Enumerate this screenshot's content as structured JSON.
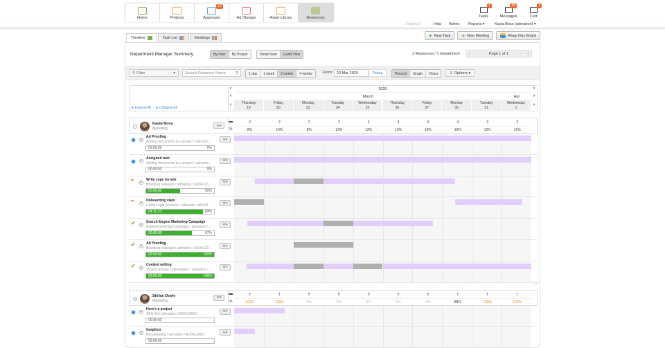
{
  "topnav": {
    "items": [
      {
        "label": "Home",
        "icon": "home-icon",
        "color": "#7ab04a"
      },
      {
        "label": "Projects",
        "icon": "folder-icon",
        "color": "#f0a050"
      },
      {
        "label": "Approvals",
        "icon": "approvals-icon",
        "color": "#6aa0e0",
        "badge": "27"
      },
      {
        "label": "Ad Storage",
        "icon": "storage-icon",
        "color": "#e06a7a"
      },
      {
        "label": "Asset Library",
        "icon": "image-icon",
        "color": "#f0a050"
      },
      {
        "label": "Resources",
        "icon": "resources-icon",
        "color": "#b8c890",
        "active": true
      }
    ],
    "right": [
      {
        "label": "Tasks",
        "icon": "tasks-icon",
        "badge": "1"
      },
      {
        "label": "Messages",
        "icon": "mail-icon",
        "badge": "48"
      },
      {
        "label": "Cart",
        "icon": "cart-icon",
        "badge": "1"
      }
    ]
  },
  "submenu": {
    "env": "Staging-2",
    "help": "Help",
    "admin": "Admin",
    "reports": "Reports ▾",
    "user": "Kayla Boss (admation) ▾"
  },
  "tabs": [
    {
      "label": "Timeline",
      "active": true
    },
    {
      "label": "Task List"
    },
    {
      "label": "Meetings"
    }
  ],
  "actions": {
    "new_task": "New Task",
    "new_meeting": "New Meeting",
    "away_day": "Away Day Board"
  },
  "summary": {
    "title": "Department Manager Summary",
    "view_by": [
      "By User",
      "By Project"
    ],
    "view_by_selected": "By User",
    "view_mode": [
      "Detail View",
      "Gantt View"
    ],
    "view_mode_selected": "Gantt View",
    "resources": "2 Resources / 1 Department",
    "page": "Page 1 of 1"
  },
  "toolbar": {
    "filter": "Filter",
    "search_placeholder": "Search Resource Name",
    "ranges": [
      "1 day",
      "1 week",
      "2 weeks",
      "4 weeks"
    ],
    "range_selected": "2 weeks",
    "from_label": "From:",
    "from_value": "23 Mar 2020",
    "today": "Today",
    "display": [
      "Percent",
      "Graph",
      "Hours"
    ],
    "display_selected": "Percent",
    "options": "Options ▾"
  },
  "calendar": {
    "year": "2020",
    "months": [
      {
        "label": "March",
        "span": 9
      },
      {
        "label": "Apr",
        "span": 1
      }
    ],
    "expand_all": "Expand All",
    "collapse_all": "Collapse All",
    "days": [
      {
        "dow": "Thursday",
        "d": "19"
      },
      {
        "dow": "Friday",
        "d": "20"
      },
      {
        "dow": "Monday",
        "d": "23"
      },
      {
        "dow": "Tuesday",
        "d": "24"
      },
      {
        "dow": "Wednesday",
        "d": "25"
      },
      {
        "dow": "Thursday",
        "d": "26"
      },
      {
        "dow": "Friday",
        "d": "27"
      },
      {
        "dow": "Monday",
        "d": "30"
      },
      {
        "dow": "Tuesday",
        "d": "31"
      },
      {
        "dow": "Wednesday",
        "d": "1"
      }
    ]
  },
  "users": [
    {
      "name": "Kayla Boss",
      "dept": "Marketing",
      "counts": [
        "2",
        "2",
        "2",
        "3",
        "3",
        "3",
        "3",
        "4",
        "3",
        "3"
      ],
      "percents": [
        "8%",
        "14%",
        "8%",
        "13%",
        "13%",
        "13%",
        "19%",
        "16%",
        "12%",
        "12%"
      ],
      "percent_colors": [
        "#333",
        "#333",
        "#333",
        "#333",
        "#333",
        "#333",
        "#333",
        "#333",
        "#333",
        "#333"
      ],
      "tasks": [
        {
          "status": "active",
          "name": "Ad Proofing",
          "sub": "Adding documents to a project / admatio...",
          "time": "00:00:00",
          "pct": "0%",
          "fill": 0,
          "bars": [
            {
              "s": 0,
              "e": 10,
              "c": "p"
            }
          ]
        },
        {
          "status": "active",
          "name": "Assigned task",
          "sub": "Adding documents to a project / admatio...",
          "time": "00:00:00",
          "pct": "0%",
          "fill": 0,
          "bars": [
            {
              "s": 0,
              "e": 10,
              "c": "p"
            }
          ]
        },
        {
          "status": "overdue",
          "name": "Write copy for ads",
          "sub": "Branding redesign / admation / AD04120...",
          "time": "02:00:00",
          "pct": "50%",
          "fill": 50,
          "bars": [
            {
              "s": 0.7,
              "e": 2,
              "c": "p"
            },
            {
              "s": 2,
              "e": 3,
              "c": "g"
            },
            {
              "s": 3,
              "e": 7.43,
              "c": "p"
            }
          ]
        },
        {
          "status": "overdue",
          "name": "Onboarding stats",
          "sub": "Client Login Screens / admation / AD041...",
          "time": "04:11:23",
          "pct": "84%",
          "fill": 84,
          "bars": [
            {
              "s": 0,
              "e": 1,
              "c": "g"
            },
            {
              "s": 7.43,
              "e": 9.7,
              "c": "p"
            }
          ]
        },
        {
          "status": "done",
          "name": "Search Engine Marketing Campaign",
          "sub": "Digital Marketing Campaign / admation / ...",
          "time": "02:00:00",
          "pct": "67%",
          "fill": 67,
          "bars": [
            {
              "s": 0.45,
              "e": 3,
              "c": "p"
            },
            {
              "s": 3,
              "e": 4,
              "c": "g"
            },
            {
              "s": 4,
              "e": 6.7,
              "c": "p"
            }
          ]
        },
        {
          "status": "done",
          "name": "Ad Proofing",
          "sub": "Branding redesign / admation / AD04120...",
          "time": "02:00:00",
          "pct": "100%",
          "fill": 100,
          "bars": [
            {
              "s": 2,
              "e": 4,
              "c": "g"
            }
          ]
        },
        {
          "status": "done",
          "name": "Content writing",
          "sub": "Search Engine Optimisation / admation / ...",
          "time": "03:00:00",
          "pct": "100%",
          "fill": 100,
          "bars": [
            {
              "s": 0.42,
              "e": 2,
              "c": "p"
            },
            {
              "s": 2,
              "e": 3,
              "c": "g"
            },
            {
              "s": 3,
              "e": 4,
              "c": "p"
            },
            {
              "s": 4,
              "e": 5,
              "c": "g"
            },
            {
              "s": 5,
              "e": 10,
              "c": "p"
            }
          ]
        }
      ]
    },
    {
      "name": "Stefan Doyle",
      "dept": "Marketing",
      "counts": [
        "2",
        "1",
        "0",
        "0",
        "0",
        "0",
        "0",
        "1",
        "1",
        "1"
      ],
      "percents": [
        "100%",
        "100%",
        "0%",
        "0%",
        "0%",
        "0%",
        "0%",
        "88%",
        "100%",
        "100%"
      ],
      "percent_colors": [
        "#f08a3a",
        "#f08a3a",
        "#bbb",
        "#bbb",
        "#bbb",
        "#bbb",
        "#bbb",
        "#333",
        "#f08a3a",
        "#f08a3a"
      ],
      "tasks": [
        {
          "status": "active",
          "name": "Here's a project",
          "sub": "SEO Ad / admation / AD0412663",
          "time": "00:00:00",
          "pct": "",
          "fill": 0,
          "bars": [
            {
              "s": 0,
              "e": 1.7,
              "c": "p"
            }
          ]
        },
        {
          "status": "active",
          "name": "Graphics",
          "sub": "Remarketing / admation / AD0412663",
          "time": "00:00:00",
          "pct": "",
          "fill": 0,
          "bars": [
            {
              "s": 0,
              "e": 0.7,
              "c": "p"
            }
          ]
        }
      ]
    }
  ]
}
